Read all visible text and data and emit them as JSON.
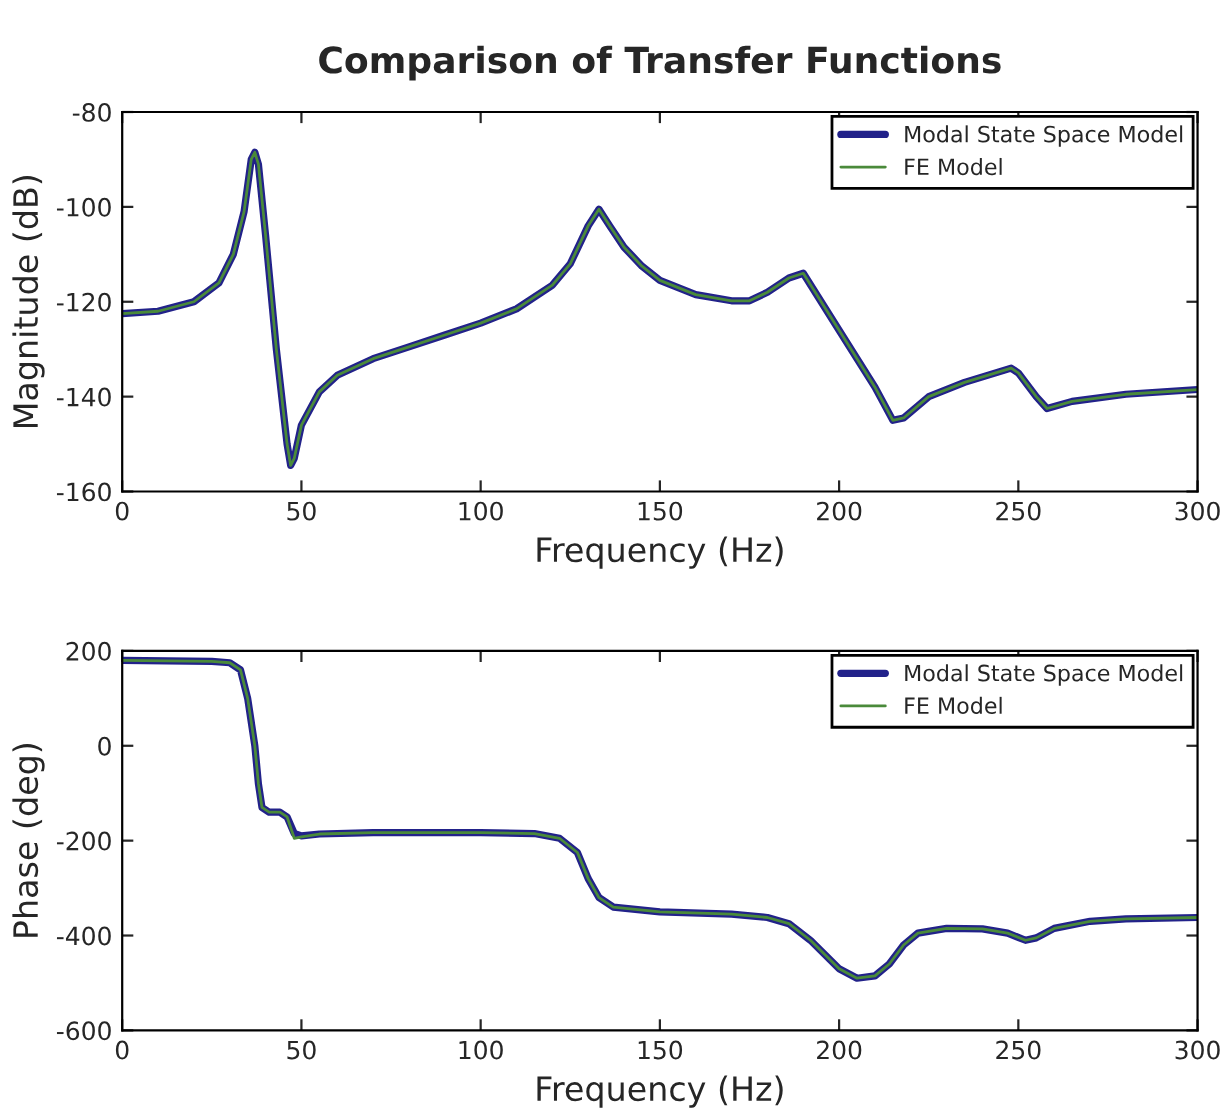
{
  "chart_data": [
    {
      "type": "line",
      "title": "Comparison of Transfer Functions",
      "xlabel": "Frequency (Hz)",
      "ylabel": "Magnitude (dB)",
      "xlim": [
        0,
        300
      ],
      "xticks": [
        0,
        50,
        100,
        150,
        200,
        250,
        300
      ],
      "ylim": [
        -160,
        -80
      ],
      "yticks": [
        -160,
        -140,
        -120,
        -100,
        -80
      ],
      "legend": "top right",
      "grid": false,
      "series": [
        {
          "name": "Modal State Space Model",
          "color": "#22228a",
          "x": [
            0,
            10,
            20,
            27,
            31,
            34,
            36,
            37,
            38,
            40,
            43,
            46,
            47,
            48,
            50,
            55,
            60,
            70,
            80,
            90,
            100,
            110,
            120,
            125,
            130,
            133,
            136,
            140,
            145,
            150,
            160,
            170,
            175,
            180,
            186,
            190,
            195,
            200,
            210,
            215,
            218,
            225,
            235,
            248,
            250,
            255,
            258,
            265,
            280,
            300
          ],
          "values": [
            -122.5,
            -122,
            -120,
            -116,
            -110,
            -101,
            -90,
            -88.5,
            -91,
            -106,
            -130,
            -150,
            -154.5,
            -153,
            -146,
            -139,
            -135.5,
            -132,
            -129.5,
            -127,
            -124.5,
            -121.5,
            -116.5,
            -112,
            -104,
            -100.5,
            -104,
            -108.5,
            -112.5,
            -115.5,
            -118.5,
            -119.8,
            -119.8,
            -118,
            -115,
            -114,
            -120,
            -126,
            -138,
            -145,
            -144.5,
            -140,
            -137,
            -134,
            -135,
            -140,
            -142.5,
            -141,
            -139.5,
            -138.5
          ]
        },
        {
          "name": "FE Model",
          "color": "#4a8a3a",
          "x": [
            0,
            10,
            20,
            27,
            31,
            34,
            36,
            37,
            38,
            40,
            43,
            46,
            47,
            48,
            50,
            55,
            60,
            70,
            80,
            90,
            100,
            110,
            120,
            125,
            130,
            133,
            136,
            140,
            145,
            150,
            160,
            170,
            175,
            180,
            186,
            190,
            195,
            200,
            210,
            215,
            218,
            225,
            235,
            248,
            250,
            255,
            258,
            265,
            280,
            300
          ],
          "values": [
            -122.5,
            -122,
            -120,
            -116,
            -110,
            -101,
            -90,
            -88.5,
            -91,
            -106,
            -130,
            -150,
            -154.5,
            -153,
            -146,
            -139,
            -135.5,
            -132,
            -129.5,
            -127,
            -124.5,
            -121.5,
            -116.5,
            -112,
            -104,
            -100.5,
            -104,
            -108.5,
            -112.5,
            -115.5,
            -118.5,
            -119.8,
            -119.8,
            -118,
            -115,
            -114,
            -120,
            -126,
            -138,
            -145,
            -144.5,
            -140,
            -137,
            -134,
            -135,
            -140,
            -142.5,
            -141,
            -139.5,
            -138.5
          ]
        }
      ]
    },
    {
      "type": "line",
      "xlabel": "Frequency (Hz)",
      "ylabel": "Phase (deg)",
      "xlim": [
        0,
        300
      ],
      "xticks": [
        0,
        50,
        100,
        150,
        200,
        250,
        300
      ],
      "ylim": [
        -600,
        200
      ],
      "yticks": [
        -600,
        -400,
        -200,
        0,
        200
      ],
      "legend": "top right",
      "grid": false,
      "series": [
        {
          "name": "Modal State Space Model",
          "color": "#22228a",
          "x": [
            0,
            25,
            30,
            33,
            35,
            37,
            38,
            39,
            41,
            44,
            46,
            48,
            50,
            55,
            70,
            100,
            115,
            122,
            127,
            130,
            133,
            137,
            150,
            170,
            180,
            186,
            192,
            196,
            200,
            205,
            210,
            214,
            218,
            222,
            230,
            240,
            247,
            252,
            255,
            260,
            270,
            280,
            300
          ],
          "values": [
            180,
            178,
            175,
            160,
            100,
            0,
            -80,
            -130,
            -140,
            -140,
            -150,
            -185,
            -190,
            -186,
            -183,
            -183,
            -185,
            -195,
            -225,
            -280,
            -320,
            -340,
            -350,
            -355,
            -362,
            -375,
            -410,
            -440,
            -470,
            -490,
            -485,
            -460,
            -420,
            -395,
            -385,
            -386,
            -395,
            -410,
            -405,
            -385,
            -370,
            -365,
            -362
          ]
        },
        {
          "name": "FE Model",
          "color": "#4a8a3a",
          "x": [
            0,
            25,
            30,
            33,
            35,
            37,
            38,
            39,
            41,
            44,
            46,
            48,
            50,
            55,
            70,
            100,
            115,
            122,
            127,
            130,
            133,
            137,
            150,
            170,
            180,
            186,
            192,
            196,
            200,
            205,
            210,
            214,
            218,
            222,
            230,
            240,
            247,
            252,
            255,
            260,
            270,
            280,
            300
          ],
          "values": [
            180,
            178,
            175,
            160,
            100,
            0,
            -80,
            -130,
            -140,
            -140,
            -150,
            -195,
            -192,
            -186,
            -183,
            -183,
            -185,
            -195,
            -225,
            -280,
            -320,
            -340,
            -350,
            -355,
            -362,
            -375,
            -410,
            -440,
            -470,
            -490,
            -485,
            -460,
            -420,
            -395,
            -385,
            -386,
            -395,
            -410,
            -405,
            -385,
            -370,
            -365,
            -362
          ]
        }
      ]
    }
  ]
}
